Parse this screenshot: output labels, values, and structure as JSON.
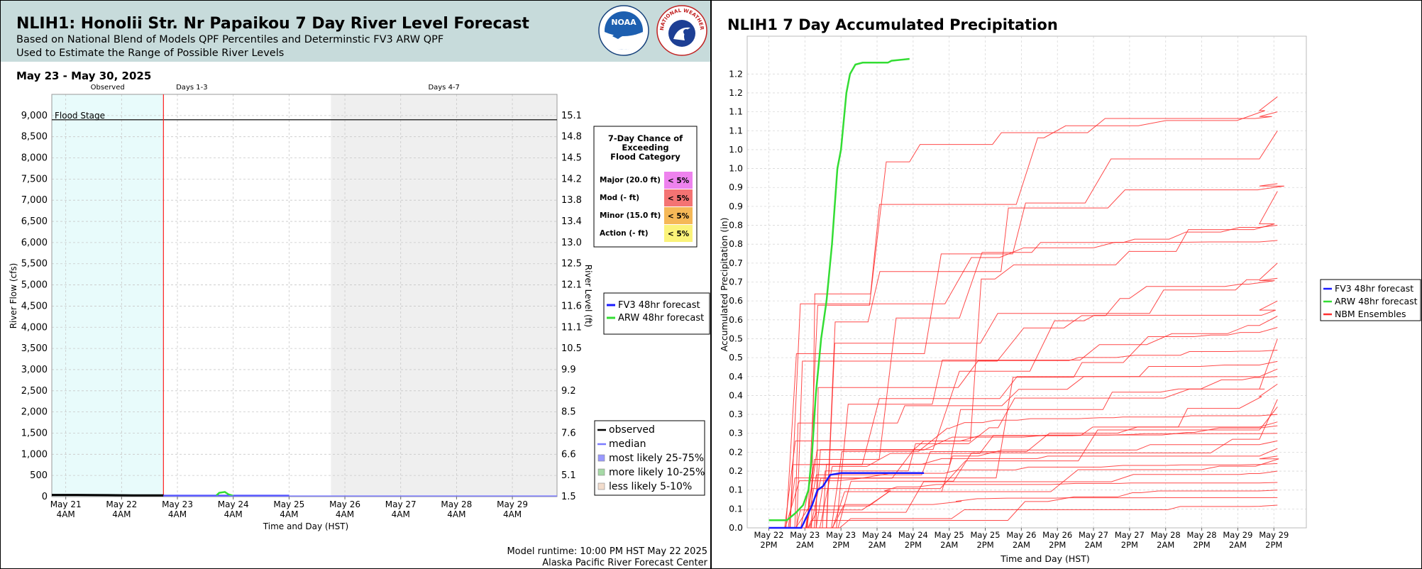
{
  "left": {
    "title": "NLIH1: Honolii Str. Nr Papaikou 7 Day River Level Forecast",
    "subtitle1": "Based on National Blend of Models QPF Percentiles and Determinstic FV3 ARW QPF",
    "subtitle2": "Used to Estimate the Range of Possible River Levels",
    "logo1": "NOAA",
    "logo2": "NATIONAL WEATHER SERVICE",
    "date_range": "May 23 - May 30, 2025",
    "footer1": "Model runtime: 10:00 PM HST May 22 2025",
    "footer2": "Alaska Pacific River Forecast Center",
    "flood_table": {
      "heading": [
        "7-Day Chance of",
        "Exceeding",
        "Flood Category"
      ],
      "rows": [
        {
          "label": "Major (20.0 ft)",
          "value": "< 5%",
          "color": "#ee82ee"
        },
        {
          "label": "Mod (- ft)",
          "value": "< 5%",
          "color": "#f47373"
        },
        {
          "label": "Minor (15.0 ft)",
          "value": "< 5%",
          "color": "#f5b857"
        },
        {
          "label": "Action (- ft)",
          "value": "< 5%",
          "color": "#fbf37a"
        }
      ]
    },
    "forecast_legend": [
      {
        "label": "FV3 48hr forecast",
        "color": "#1a1aff"
      },
      {
        "label": "ARW 48hr forecast",
        "color": "#33dd33"
      }
    ],
    "obs_legend": [
      {
        "label": "observed",
        "color": "#000000",
        "kind": "line"
      },
      {
        "label": "median",
        "color": "#7b7bff",
        "kind": "line"
      },
      {
        "label": "most likely 25-75%",
        "color": "#9999ff",
        "kind": "box"
      },
      {
        "label": "more likely 10-25%",
        "color": "#a6d9a6",
        "kind": "box"
      },
      {
        "label": "less likely 5-10%",
        "color": "#f2dccc",
        "kind": "box"
      }
    ]
  },
  "right": {
    "title": "NLIH1 7 Day Accumulated Precipitation",
    "legend": [
      {
        "label": "FV3 48hr forecast",
        "color": "#1a1aff"
      },
      {
        "label": "ARW 48hr forecast",
        "color": "#33dd33"
      },
      {
        "label": "NBM Ensembles",
        "color": "#ff3030"
      }
    ]
  },
  "chart_data": [
    {
      "type": "line",
      "title": "NLIH1: Honolii Str. Nr Papaikou 7 Day River Level Forecast",
      "xlabel": "Time and Day (HST)",
      "ylabel": "River Flow (cfs)",
      "y2label": "River Level (ft)",
      "ylim": [
        0,
        9500
      ],
      "xlim_days": [
        0.75,
        9.8
      ],
      "x_ticks": [
        [
          "May 21",
          "4AM"
        ],
        [
          "May 22",
          "4AM"
        ],
        [
          "May 23",
          "4AM"
        ],
        [
          "May 24",
          "4AM"
        ],
        [
          "May 25",
          "4AM"
        ],
        [
          "May 26",
          "4AM"
        ],
        [
          "May 27",
          "4AM"
        ],
        [
          "May 28",
          "4AM"
        ],
        [
          "May 29",
          "4AM"
        ]
      ],
      "y_ticks": [
        "0",
        "500",
        "1,000",
        "1,500",
        "2,000",
        "2,500",
        "3,000",
        "3,500",
        "4,000",
        "4,500",
        "5,000",
        "5,500",
        "6,000",
        "6,500",
        "7,000",
        "7,500",
        "8,000",
        "8,500",
        "9,000"
      ],
      "y2_ticks": [
        "1.5",
        "5.1",
        "6.6",
        "7.6",
        "8.5",
        "9.2",
        "9.9",
        "10.5",
        "11.1",
        "11.6",
        "12.1",
        "12.5",
        "13.0",
        "13.4",
        "13.8",
        "14.2",
        "14.5",
        "14.8",
        "15.1"
      ],
      "regions": [
        {
          "label": "Observed",
          "from": 0.75,
          "to": 2.75
        },
        {
          "label": "Days 1-3",
          "from": 2.75,
          "to": 5.75
        },
        {
          "label": "Days 4-7",
          "from": 5.75,
          "to": 9.8
        }
      ],
      "flood_stage": {
        "label": "Flood Stage",
        "value": 8900
      },
      "grid": true,
      "series": [
        {
          "name": "observed",
          "color": "#000000",
          "points": [
            [
              0.75,
              40
            ],
            [
              1.2,
              40
            ],
            [
              1.75,
              35
            ],
            [
              2.2,
              30
            ],
            [
              2.75,
              28
            ]
          ]
        },
        {
          "name": "FV3 48hr forecast",
          "color": "#1a1aff",
          "points": [
            [
              2.75,
              20
            ],
            [
              3.5,
              20
            ],
            [
              4.0,
              20
            ],
            [
              5.0,
              20
            ]
          ]
        },
        {
          "name": "ARW 48hr forecast",
          "color": "#33dd33",
          "points": [
            [
              3.7,
              30
            ],
            [
              3.75,
              90
            ],
            [
              3.85,
              110
            ],
            [
              3.92,
              50
            ],
            [
              4.0,
              20
            ]
          ]
        },
        {
          "name": "median",
          "color": "#7b7bff",
          "points": [
            [
              2.75,
              15
            ],
            [
              9.8,
              15
            ]
          ]
        }
      ]
    },
    {
      "type": "line",
      "title": "NLIH1 7 Day Accumulated Precipitation",
      "xlabel": "Time and Day (HST)",
      "ylabel": "Accumulated Precipitation (in)",
      "ylim": [
        0,
        1.3
      ],
      "x_ticks": [
        [
          "May 22",
          "2PM"
        ],
        [
          "May 23",
          "2AM"
        ],
        [
          "May 23",
          "2PM"
        ],
        [
          "May 24",
          "2AM"
        ],
        [
          "May 24",
          "2PM"
        ],
        [
          "May 25",
          "2AM"
        ],
        [
          "May 25",
          "2PM"
        ],
        [
          "May 26",
          "2AM"
        ],
        [
          "May 26",
          "2PM"
        ],
        [
          "May 27",
          "2AM"
        ],
        [
          "May 27",
          "2PM"
        ],
        [
          "May 28",
          "2AM"
        ],
        [
          "May 28",
          "2PM"
        ],
        [
          "May 29",
          "2AM"
        ],
        [
          "May 29",
          "2PM"
        ]
      ],
      "y_ticks": [
        "0.0",
        "0.1",
        "0.1",
        "0.2",
        "0.2",
        "0.3",
        "0.3",
        "0.4",
        "0.4",
        "0.5",
        "0.5",
        "0.6",
        "0.6",
        "0.7",
        "0.7",
        "0.8",
        "0.8",
        "0.9",
        "0.9",
        "1.0",
        "1.0",
        "1.1",
        "1.1",
        "1.2",
        "1.2"
      ],
      "grid": true,
      "fv3": [
        [
          0.6,
          0.0
        ],
        [
          1.5,
          0.0
        ],
        [
          1.8,
          0.06
        ],
        [
          1.95,
          0.1
        ],
        [
          2.1,
          0.11
        ],
        [
          2.3,
          0.14
        ],
        [
          2.6,
          0.145
        ],
        [
          3.0,
          0.145
        ],
        [
          4.9,
          0.145
        ]
      ],
      "arw": [
        [
          0.6,
          0.02
        ],
        [
          1.1,
          0.02
        ],
        [
          1.35,
          0.04
        ],
        [
          1.55,
          0.06
        ],
        [
          1.7,
          0.1
        ],
        [
          1.8,
          0.2
        ],
        [
          1.9,
          0.35
        ],
        [
          2.05,
          0.5
        ],
        [
          2.2,
          0.6
        ],
        [
          2.35,
          0.75
        ],
        [
          2.5,
          0.95
        ],
        [
          2.6,
          1.0
        ],
        [
          2.75,
          1.15
        ],
        [
          2.85,
          1.2
        ],
        [
          3.0,
          1.225
        ],
        [
          3.2,
          1.23
        ],
        [
          3.5,
          1.23
        ],
        [
          3.9,
          1.23
        ],
        [
          4.0,
          1.235
        ],
        [
          4.5,
          1.24
        ]
      ],
      "nbm_ensemble_final_values": [
        1.14,
        1.1,
        1.05,
        0.91,
        0.89,
        0.8,
        0.76,
        0.7,
        0.66,
        0.6,
        0.56,
        0.53,
        0.5,
        0.47,
        0.44,
        0.42,
        0.4,
        0.38,
        0.34,
        0.32,
        0.3,
        0.28,
        0.27,
        0.25,
        0.23,
        0.21,
        0.19,
        0.17,
        0.15,
        0.12,
        0.1,
        0.08,
        0.06
      ]
    }
  ]
}
